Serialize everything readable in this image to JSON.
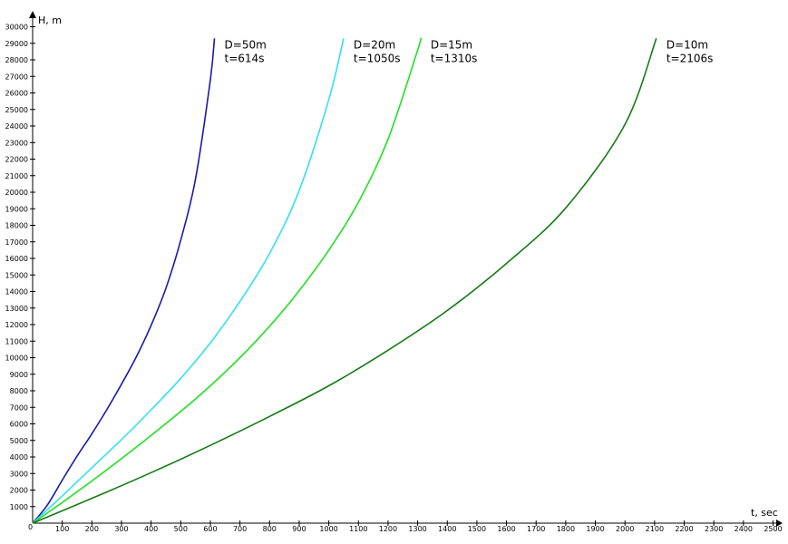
{
  "chart_data": {
    "type": "line",
    "xlabel": "t, sec",
    "ylabel": "H, m",
    "origin_label": "0",
    "xlim": [
      0,
      2500
    ],
    "ylim": [
      0,
      30000
    ],
    "x_ticks": [
      100,
      200,
      300,
      400,
      500,
      600,
      700,
      800,
      900,
      1000,
      1100,
      1200,
      1300,
      1400,
      1500,
      1600,
      1700,
      1800,
      1900,
      2000,
      2100,
      2200,
      2300,
      2400,
      2500
    ],
    "y_ticks": [
      1000,
      2000,
      3000,
      4000,
      5000,
      6000,
      7000,
      8000,
      9000,
      10000,
      11000,
      12000,
      13000,
      14000,
      15000,
      16000,
      17000,
      18000,
      19000,
      20000,
      21000,
      22000,
      23000,
      24000,
      25000,
      26000,
      27000,
      28000,
      29000,
      30000
    ],
    "grid": false,
    "series": [
      {
        "name": "D=50m",
        "end_label": "t=614s",
        "color": "#1a1aa8",
        "x": [
          0,
          50,
          100,
          150,
          200,
          250,
          300,
          350,
          400,
          450,
          500,
          550,
          600,
          614
        ],
        "y": [
          0,
          1100,
          2600,
          4050,
          5400,
          6850,
          8400,
          10050,
          11950,
          14200,
          17100,
          20800,
          26800,
          29300
        ]
      },
      {
        "name": "D=20m",
        "end_label": "t=1050s",
        "color": "#33e0ee",
        "x": [
          0,
          100,
          200,
          300,
          400,
          500,
          600,
          700,
          800,
          900,
          1000,
          1050
        ],
        "y": [
          0,
          1650,
          3350,
          5050,
          6850,
          8750,
          10900,
          13400,
          16300,
          20100,
          25600,
          29300
        ]
      },
      {
        "name": "D=15m",
        "end_label": "t=1310s",
        "color": "#22e022",
        "x": [
          0,
          100,
          200,
          300,
          400,
          500,
          600,
          700,
          800,
          900,
          1000,
          1100,
          1200,
          1300,
          1310
        ],
        "y": [
          0,
          1250,
          2550,
          3900,
          5300,
          6750,
          8300,
          10000,
          11900,
          14050,
          16500,
          19400,
          23200,
          28600,
          29300
        ]
      },
      {
        "name": "D=10m",
        "end_label": "t=2106s",
        "color": "#157a15",
        "x": [
          0,
          200,
          400,
          600,
          800,
          1000,
          1200,
          1400,
          1600,
          1800,
          2000,
          2106
        ],
        "y": [
          0,
          1500,
          3050,
          4700,
          6450,
          8300,
          10450,
          12850,
          15700,
          19050,
          24100,
          29300
        ]
      }
    ]
  }
}
